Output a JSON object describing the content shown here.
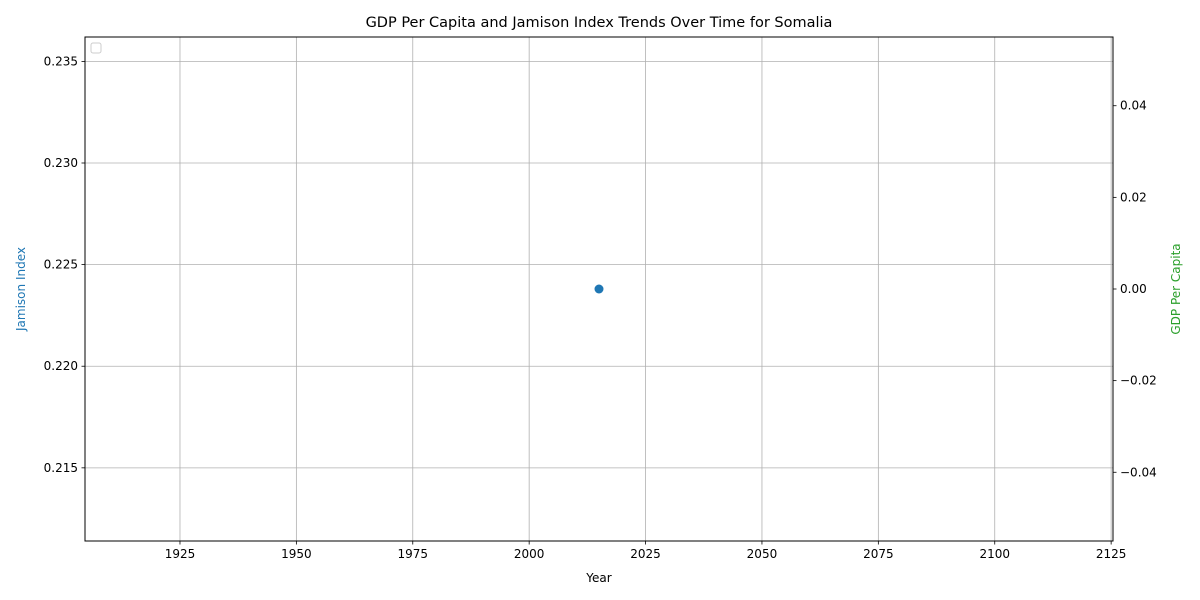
{
  "chart_data": {
    "type": "scatter",
    "title": "GDP Per Capita and Jamison Index Trends Over Time for Somalia",
    "xlabel": "Year",
    "ylabel_left": "Jamison Index",
    "ylabel_right": "GDP Per Capita",
    "xlim": [
      1904.6,
      2125.4
    ],
    "ylim_left": [
      0.2114,
      0.2362
    ],
    "ylim_right": [
      -0.055,
      0.055
    ],
    "x_ticks": [
      1925,
      1950,
      1975,
      2000,
      2025,
      2050,
      2075,
      2100,
      2125
    ],
    "y_left_ticks": [
      0.215,
      0.22,
      0.225,
      0.23,
      0.235
    ],
    "y_left_tick_labels": [
      "0.215",
      "0.220",
      "0.225",
      "0.230",
      "0.235"
    ],
    "y_right_ticks": [
      -0.04,
      -0.02,
      0.0,
      0.02,
      0.04
    ],
    "y_right_tick_labels": [
      "−0.04",
      "−0.02",
      "0.00",
      "0.02",
      "0.04"
    ],
    "grid": true,
    "legend": "top-left (empty)",
    "series": [
      {
        "axis": "left",
        "color": "#1f77b4",
        "points": [
          {
            "x": 2015,
            "y": 0.2238
          }
        ]
      },
      {
        "axis": "right",
        "color": "#2ca02c",
        "points": []
      }
    ],
    "colors": {
      "left_axis_label": "#1f77b4",
      "right_axis_label": "#2ca02c",
      "grid": "#b0b0b0"
    }
  }
}
